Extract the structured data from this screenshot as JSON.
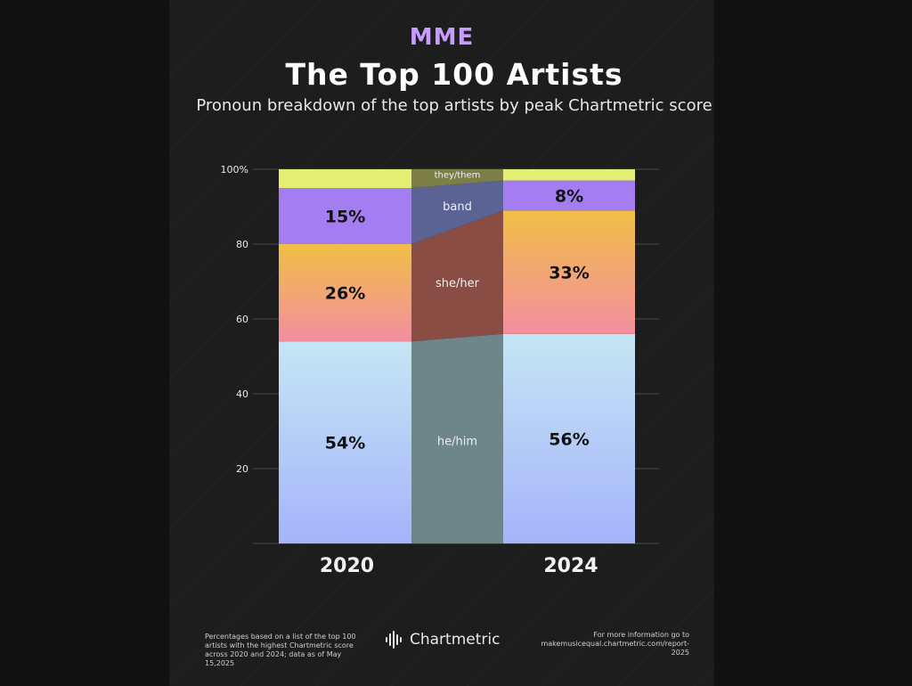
{
  "logo": "MME",
  "title": "The Top 100 Artists",
  "subtitle": "Pronoun breakdown of the top artists by peak Chartmetric score",
  "chart_data": {
    "type": "bar",
    "stacked": true,
    "categories": [
      "2020",
      "2024"
    ],
    "yticks": [
      "20",
      "40",
      "60",
      "80",
      "100%"
    ],
    "ylim": [
      0,
      100
    ],
    "grid": true,
    "series": [
      {
        "name": "he/him",
        "values": [
          54,
          56
        ],
        "labels": [
          "54%",
          "56%"
        ],
        "color_top": "#c5e6f4",
        "color_bottom": "#a4b4fb",
        "ribbon_color": "#6e8589"
      },
      {
        "name": "she/her",
        "values": [
          26,
          33
        ],
        "labels": [
          "26%",
          "33%"
        ],
        "color_top": "#f1bf45",
        "color_bottom": "#f28ea0",
        "ribbon_color": "#8a4d43"
      },
      {
        "name": "band",
        "values": [
          15,
          8
        ],
        "labels": [
          "15%",
          "8%"
        ],
        "color_top": "#a57df3",
        "color_bottom": "#a57df3",
        "ribbon_color": "#5b6394"
      },
      {
        "name": "they/them",
        "values": [
          5,
          3
        ],
        "labels": [
          "",
          ""
        ],
        "color_top": "#e3ef74",
        "color_bottom": "#e3ef74",
        "ribbon_color": "#7b7f46"
      }
    ]
  },
  "footer": {
    "left": "Percentages based on a list of the top 100 artists with the highest Chartmetric score across 2020 and 2024; data as of May 15,2025",
    "brand": "Chartmetric",
    "right_line1": "For more information go to",
    "right_line2": "makemusicequal.chartmetric.com/report-2025"
  }
}
